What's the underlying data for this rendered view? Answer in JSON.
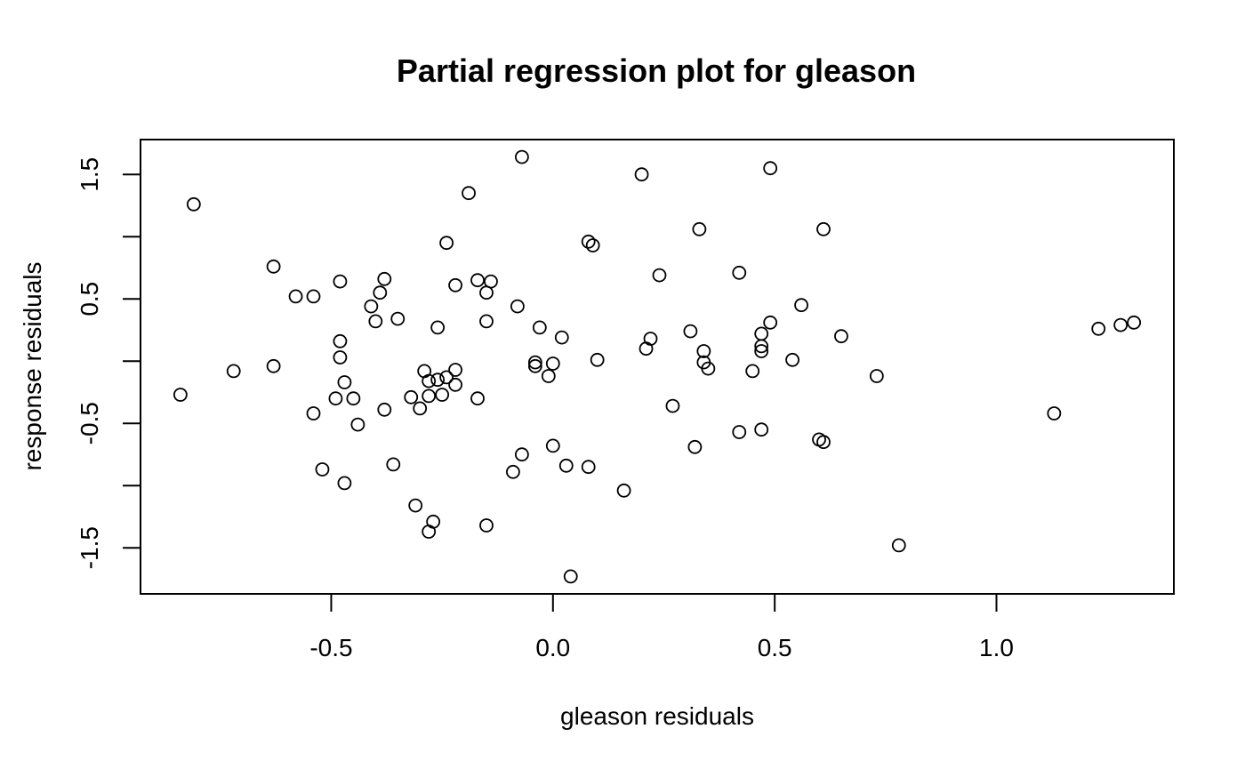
{
  "chart_data": {
    "type": "scatter",
    "title": "Partial regression plot for gleason",
    "xlabel": "gleason residuals",
    "ylabel": "response residuals",
    "xlim": [
      -0.93,
      1.4
    ],
    "ylim": [
      -1.87,
      1.78
    ],
    "x_ticks": [
      -0.5,
      0.0,
      0.5,
      1.0
    ],
    "x_tick_labels": [
      "-0.5",
      "0.0",
      "0.5",
      "1.0"
    ],
    "y_ticks": [
      -1.5,
      -1.0,
      -0.5,
      0.0,
      0.5,
      1.0,
      1.5
    ],
    "y_tick_labels": [
      "-1.5",
      "",
      "-0.5",
      "",
      "0.5",
      "",
      "1.5"
    ],
    "grid": false,
    "legend": "none",
    "marker": "open-circle",
    "color": "#000000",
    "points": [
      [
        -0.84,
        -0.27
      ],
      [
        -0.81,
        1.26
      ],
      [
        -0.72,
        -0.08
      ],
      [
        -0.63,
        0.76
      ],
      [
        -0.63,
        -0.04
      ],
      [
        -0.58,
        0.52
      ],
      [
        -0.54,
        0.52
      ],
      [
        -0.54,
        -0.42
      ],
      [
        -0.52,
        -0.87
      ],
      [
        -0.49,
        -0.3
      ],
      [
        -0.48,
        0.64
      ],
      [
        -0.48,
        0.16
      ],
      [
        -0.48,
        0.03
      ],
      [
        -0.47,
        -0.17
      ],
      [
        -0.47,
        -0.98
      ],
      [
        -0.45,
        -0.3
      ],
      [
        -0.44,
        -0.51
      ],
      [
        -0.41,
        0.44
      ],
      [
        -0.4,
        0.32
      ],
      [
        -0.39,
        0.55
      ],
      [
        -0.38,
        0.66
      ],
      [
        -0.38,
        -0.39
      ],
      [
        -0.36,
        -0.83
      ],
      [
        -0.35,
        0.34
      ],
      [
        -0.32,
        -0.29
      ],
      [
        -0.31,
        -1.16
      ],
      [
        -0.3,
        -0.38
      ],
      [
        -0.29,
        -0.08
      ],
      [
        -0.28,
        -0.16
      ],
      [
        -0.28,
        -0.28
      ],
      [
        -0.28,
        -1.37
      ],
      [
        -0.27,
        -1.29
      ],
      [
        -0.26,
        0.27
      ],
      [
        -0.26,
        -0.15
      ],
      [
        -0.25,
        -0.27
      ],
      [
        -0.24,
        0.95
      ],
      [
        -0.24,
        -0.13
      ],
      [
        -0.22,
        0.61
      ],
      [
        -0.22,
        -0.07
      ],
      [
        -0.22,
        -0.19
      ],
      [
        -0.19,
        1.35
      ],
      [
        -0.17,
        0.65
      ],
      [
        -0.17,
        -0.3
      ],
      [
        -0.15,
        0.55
      ],
      [
        -0.15,
        0.32
      ],
      [
        -0.15,
        -1.32
      ],
      [
        -0.14,
        0.64
      ],
      [
        -0.09,
        -0.89
      ],
      [
        -0.08,
        0.44
      ],
      [
        -0.07,
        1.64
      ],
      [
        -0.07,
        -0.75
      ],
      [
        -0.04,
        -0.01
      ],
      [
        -0.04,
        -0.04
      ],
      [
        -0.03,
        0.27
      ],
      [
        -0.01,
        -0.12
      ],
      [
        0.0,
        -0.02
      ],
      [
        0.0,
        -0.68
      ],
      [
        0.02,
        0.19
      ],
      [
        0.03,
        -0.84
      ],
      [
        0.04,
        -1.73
      ],
      [
        0.08,
        0.96
      ],
      [
        0.08,
        -0.85
      ],
      [
        0.09,
        0.93
      ],
      [
        0.1,
        0.01
      ],
      [
        0.16,
        -1.04
      ],
      [
        0.2,
        1.5
      ],
      [
        0.21,
        0.1
      ],
      [
        0.22,
        0.18
      ],
      [
        0.24,
        0.69
      ],
      [
        0.27,
        -0.36
      ],
      [
        0.31,
        0.24
      ],
      [
        0.32,
        -0.69
      ],
      [
        0.33,
        1.06
      ],
      [
        0.34,
        0.08
      ],
      [
        0.34,
        -0.01
      ],
      [
        0.35,
        -0.06
      ],
      [
        0.42,
        0.71
      ],
      [
        0.42,
        -0.57
      ],
      [
        0.45,
        -0.08
      ],
      [
        0.47,
        0.08
      ],
      [
        0.47,
        0.12
      ],
      [
        0.47,
        0.22
      ],
      [
        0.47,
        -0.55
      ],
      [
        0.49,
        0.31
      ],
      [
        0.49,
        1.55
      ],
      [
        0.54,
        0.01
      ],
      [
        0.56,
        0.45
      ],
      [
        0.6,
        -0.63
      ],
      [
        0.61,
        -0.65
      ],
      [
        0.61,
        1.06
      ],
      [
        0.65,
        0.2
      ],
      [
        0.73,
        -0.12
      ],
      [
        0.78,
        -1.48
      ],
      [
        1.13,
        -0.42
      ],
      [
        1.23,
        0.26
      ],
      [
        1.28,
        0.29
      ],
      [
        1.31,
        0.31
      ]
    ]
  }
}
